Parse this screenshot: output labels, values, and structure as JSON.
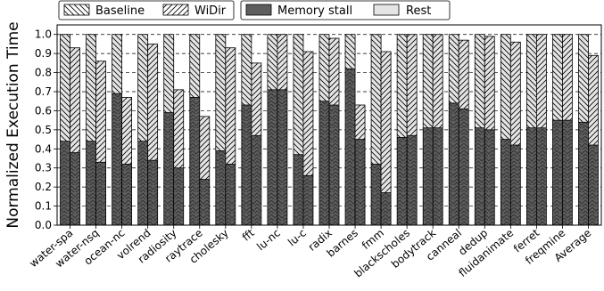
{
  "chart_data": {
    "type": "bar",
    "title": "",
    "xlabel": "",
    "ylabel": "Normalized Execution Time",
    "ylim": [
      0,
      1.05
    ],
    "yticks": [
      "0.0",
      "0.1",
      "0.2",
      "0.3",
      "0.4",
      "0.5",
      "0.6",
      "0.7",
      "0.8",
      "0.9",
      "1.0"
    ],
    "grid": "horizontal dashed",
    "legend_position": "top",
    "legend_entries": [
      "Baseline",
      "WiDir",
      "Memory stall",
      "Rest"
    ],
    "categories": [
      "water-spa",
      "water-nsq",
      "ocean-nc",
      "volrend",
      "radiosity",
      "raytrace",
      "cholesky",
      "fft",
      "lu-nc",
      "lu-c",
      "radix",
      "barnes",
      "fmm",
      "blackscholes",
      "bodytrack",
      "canneal",
      "dedup",
      "fluidanimate",
      "ferret",
      "freqmine",
      "Average"
    ],
    "series": [
      {
        "name": "Baseline",
        "total": [
          1.0,
          1.0,
          1.0,
          1.0,
          1.0,
          1.0,
          1.0,
          1.0,
          1.0,
          1.0,
          1.0,
          1.0,
          1.0,
          1.0,
          1.0,
          1.0,
          1.0,
          1.0,
          1.0,
          1.0,
          1.0
        ],
        "memory_stall": [
          0.44,
          0.44,
          0.69,
          0.44,
          0.59,
          0.67,
          0.39,
          0.63,
          0.71,
          0.37,
          0.65,
          0.82,
          0.32,
          0.46,
          0.51,
          0.64,
          0.51,
          0.45,
          0.51,
          0.55,
          0.54
        ]
      },
      {
        "name": "WiDir",
        "total": [
          0.93,
          0.86,
          0.67,
          0.95,
          0.71,
          0.57,
          0.93,
          0.85,
          1.0,
          0.91,
          0.98,
          0.63,
          0.91,
          1.0,
          1.0,
          0.97,
          0.99,
          0.96,
          1.0,
          1.0,
          0.89
        ],
        "memory_stall": [
          0.38,
          0.33,
          0.32,
          0.34,
          0.3,
          0.24,
          0.32,
          0.47,
          0.71,
          0.26,
          0.63,
          0.45,
          0.17,
          0.47,
          0.51,
          0.61,
          0.5,
          0.42,
          0.51,
          0.55,
          0.42
        ]
      }
    ],
    "stack_components": [
      "Memory stall",
      "Rest"
    ],
    "colors": {
      "memory_stall": "#5e5e5e",
      "rest": "#e5e5e5",
      "edge": "#000000",
      "grid": "#000000"
    }
  }
}
